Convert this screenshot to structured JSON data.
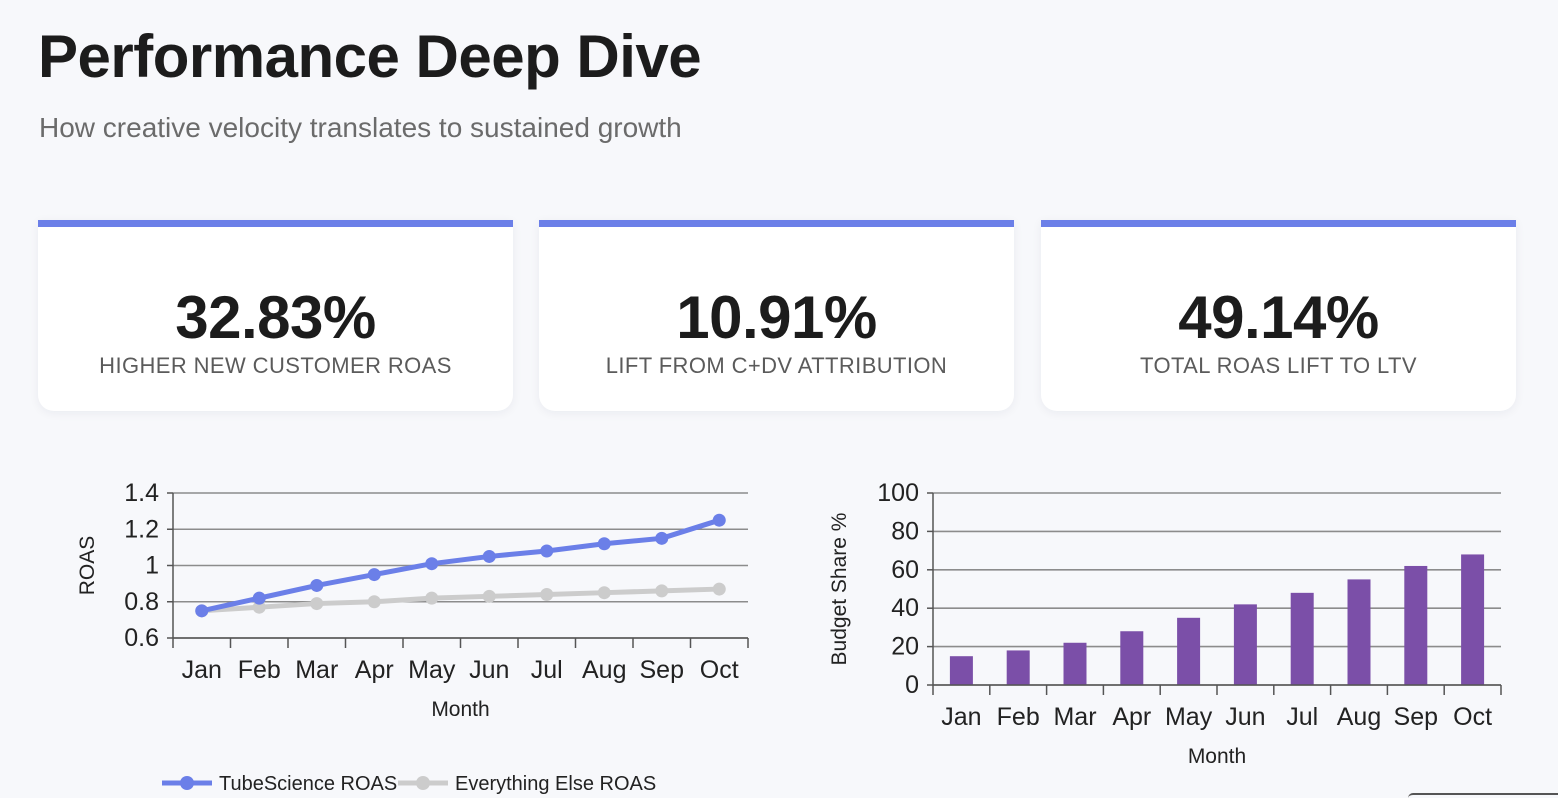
{
  "page": {
    "title": "Performance Deep Dive",
    "subtitle": "How creative velocity translates to sustained growth"
  },
  "colors": {
    "accent": "#6b7fe8",
    "series_primary": "#6b7fe8",
    "series_secondary": "#cccccc",
    "bar": "#7b4fa8"
  },
  "stats": [
    {
      "value": "32.83%",
      "label": "HIGHER NEW CUSTOMER ROAS"
    },
    {
      "value": "10.91%",
      "label": "LIFT FROM C+DV ATTRIBUTION"
    },
    {
      "value": "49.14%",
      "label": "TOTAL ROAS LIFT TO LTV"
    }
  ],
  "chart_data": [
    {
      "type": "line",
      "categories": [
        "Jan",
        "Feb",
        "Mar",
        "Apr",
        "May",
        "Jun",
        "Jul",
        "Aug",
        "Sep",
        "Oct"
      ],
      "series": [
        {
          "name": "TubeScience ROAS",
          "values": [
            0.75,
            0.82,
            0.89,
            0.95,
            1.01,
            1.05,
            1.08,
            1.12,
            1.15,
            1.25
          ]
        },
        {
          "name": "Everything Else ROAS",
          "values": [
            0.75,
            0.77,
            0.79,
            0.8,
            0.82,
            0.83,
            0.84,
            0.85,
            0.86,
            0.87
          ]
        }
      ],
      "xlabel": "Month",
      "ylabel": "ROAS",
      "ylim": [
        0.6,
        1.4
      ],
      "yticks": [
        "0.6",
        "0.8",
        "1",
        "1.2",
        "1.4"
      ],
      "grid": true,
      "legend": "bottom"
    },
    {
      "type": "bar",
      "categories": [
        "Jan",
        "Feb",
        "Mar",
        "Apr",
        "May",
        "Jun",
        "Jul",
        "Aug",
        "Sep",
        "Oct"
      ],
      "values": [
        15,
        18,
        22,
        28,
        35,
        42,
        48,
        55,
        62,
        68
      ],
      "xlabel": "Month",
      "ylabel": "Budget Share %",
      "ylim": [
        0,
        100
      ],
      "yticks": [
        "0",
        "20",
        "40",
        "60",
        "80",
        "100"
      ],
      "grid": true
    }
  ]
}
